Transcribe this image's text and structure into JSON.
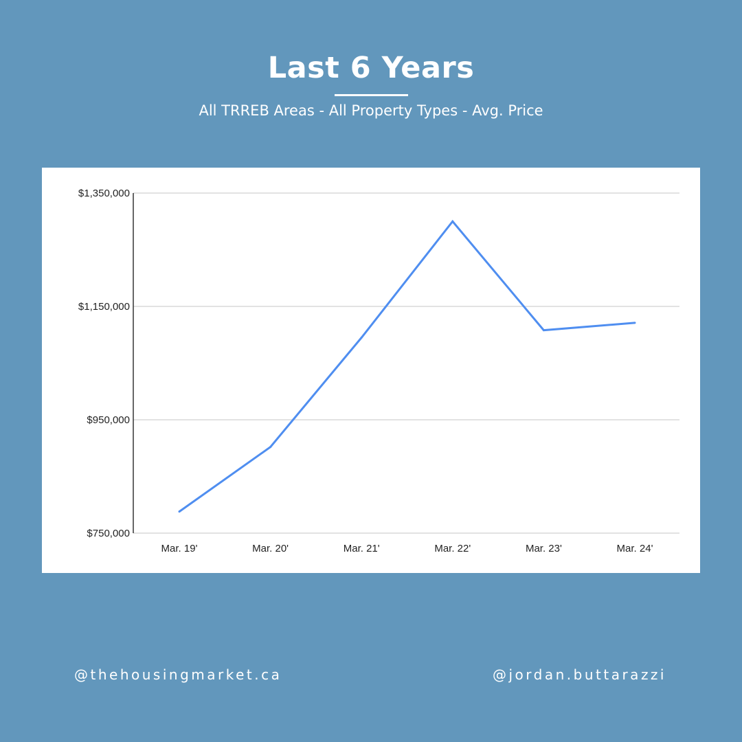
{
  "header": {
    "title": "Last 6 Years",
    "subtitle": "All TRREB Areas - All Property Types - Avg. Price"
  },
  "footer": {
    "left_handle": "@thehousingmarket.ca",
    "right_handle": "@jordan.buttarazzi"
  },
  "colors": {
    "background": "#6297bc",
    "panel": "#ffffff",
    "line": "#4f8ef0",
    "gridline": "#d9d9d9"
  },
  "chart_data": {
    "type": "line",
    "title": "",
    "xlabel": "",
    "ylabel": "",
    "categories": [
      "Mar. 19'",
      "Mar. 20'",
      "Mar. 21'",
      "Mar. 22'",
      "Mar. 23'",
      "Mar. 24'"
    ],
    "values": [
      788000,
      902000,
      1095000,
      1300000,
      1108000,
      1121000
    ],
    "ylim": [
      750000,
      1350000
    ],
    "yticks": [
      750000,
      950000,
      1150000,
      1350000
    ],
    "ytick_labels": [
      "$750,000",
      "$950,000",
      "$1,150,000",
      "$1,350,000"
    ],
    "grid": true,
    "legend": "none"
  }
}
